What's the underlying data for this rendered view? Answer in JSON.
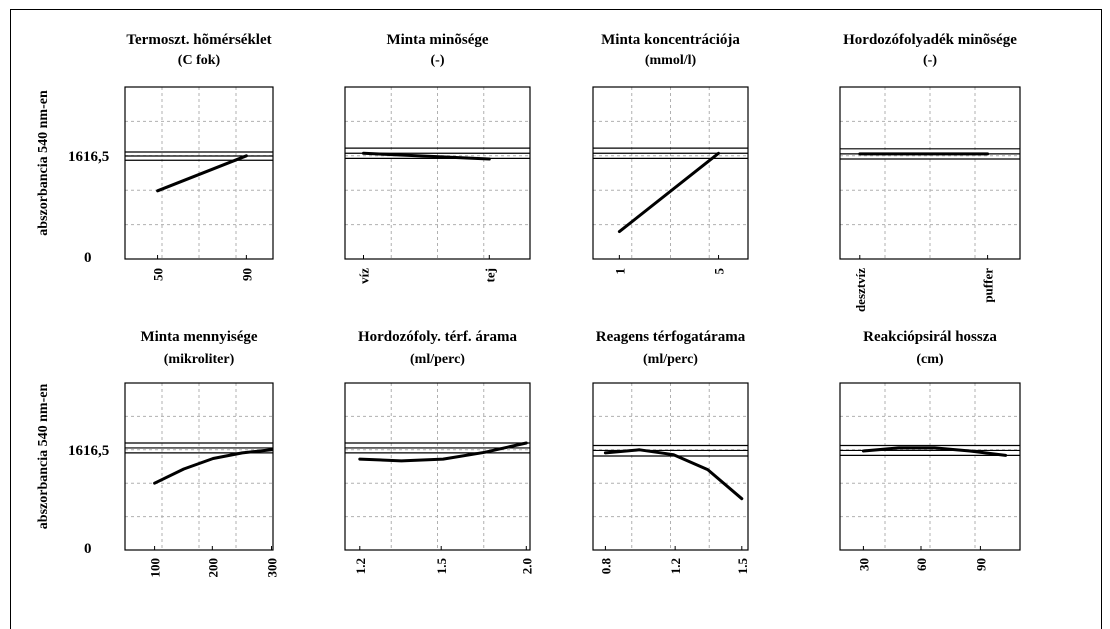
{
  "ylabel": "abszorbancia 540 nm-en",
  "y_ref_label": "1616,5",
  "y_zero_label": "0",
  "colors": {
    "line": "#000000",
    "grid": "#b0b0b0",
    "frame": "#000000",
    "background": "#ffffff"
  },
  "chart_data": [
    {
      "type": "line",
      "title": "Termoszt. hõmérséklet",
      "subtitle": "(C fok)",
      "tick_labels": [
        "50",
        "90"
      ],
      "series": [
        {
          "x": [
            "50",
            "90"
          ],
          "values": [
            1070,
            1620
          ]
        }
      ],
      "reference_lines": [
        1680,
        1616.5,
        1550
      ],
      "ylim": [
        0,
        2700
      ]
    },
    {
      "type": "line",
      "title": "Minta minõsége",
      "subtitle": "(-)",
      "tick_labels": [
        "víz",
        "tej"
      ],
      "series": [
        {
          "x": [
            "víz",
            "tej"
          ],
          "values": [
            1660,
            1570
          ]
        }
      ],
      "reference_lines": [
        1740,
        1660,
        1580
      ],
      "ylim": [
        0,
        2700
      ]
    },
    {
      "type": "line",
      "title": "Minta koncentrációja",
      "subtitle": "(mmol/l)",
      "tick_labels": [
        "1",
        "5"
      ],
      "series": [
        {
          "x": [
            "1",
            "5"
          ],
          "values": [
            430,
            1660
          ]
        }
      ],
      "reference_lines": [
        1740,
        1660,
        1580
      ],
      "ylim": [
        0,
        2700
      ]
    },
    {
      "type": "line",
      "title": "Hordozófolyadék minõsége",
      "subtitle": "(-)",
      "tick_labels": [
        "desztvíz",
        "puffer"
      ],
      "series": [
        {
          "x": [
            "desztvíz",
            "puffer"
          ],
          "values": [
            1650,
            1650
          ]
        }
      ],
      "reference_lines": [
        1730,
        1650,
        1570
      ],
      "ylim": [
        0,
        2700
      ]
    },
    {
      "type": "line",
      "title": "Minta mennyisége",
      "subtitle": "(mikroliter)",
      "tick_labels": [
        "100",
        "200",
        "300"
      ],
      "series": [
        {
          "x": [
            100,
            150,
            200,
            250,
            300
          ],
          "values": [
            1080,
            1310,
            1480,
            1570,
            1620
          ]
        }
      ],
      "reference_lines": [
        1730,
        1650,
        1570
      ],
      "ylim": [
        0,
        2700
      ]
    },
    {
      "type": "line",
      "title": "Hordozófoly. térf. árama",
      "subtitle": "(ml/perc)",
      "tick_labels": [
        "1.2",
        "1.5",
        "2.0"
      ],
      "series": [
        {
          "x": [
            1.2,
            1.4,
            1.6,
            1.8,
            2.0
          ],
          "values": [
            1470,
            1440,
            1470,
            1580,
            1730
          ]
        }
      ],
      "reference_lines": [
        1730,
        1650,
        1570
      ],
      "ylim": [
        0,
        2700
      ]
    },
    {
      "type": "line",
      "title": "Reagens térfogatárama",
      "subtitle": "(ml/perc)",
      "tick_labels": [
        "0.8",
        "1.2",
        "1.5"
      ],
      "series": [
        {
          "x": [
            0.8,
            1.0,
            1.2,
            1.4,
            1.6
          ],
          "values": [
            1570,
            1620,
            1540,
            1300,
            830
          ]
        }
      ],
      "reference_lines": [
        1690,
        1610,
        1520
      ],
      "ylim": [
        0,
        2700
      ]
    },
    {
      "type": "line",
      "title": "Reakciópsirál hossza",
      "subtitle": "(cm)",
      "tick_labels": [
        "30",
        "60",
        "90"
      ],
      "series": [
        {
          "x": [
            30,
            50,
            70,
            90,
            110
          ],
          "values": [
            1600,
            1650,
            1650,
            1600,
            1530
          ]
        }
      ],
      "reference_lines": [
        1690,
        1610,
        1530
      ],
      "ylim": [
        0,
        2700
      ]
    }
  ]
}
